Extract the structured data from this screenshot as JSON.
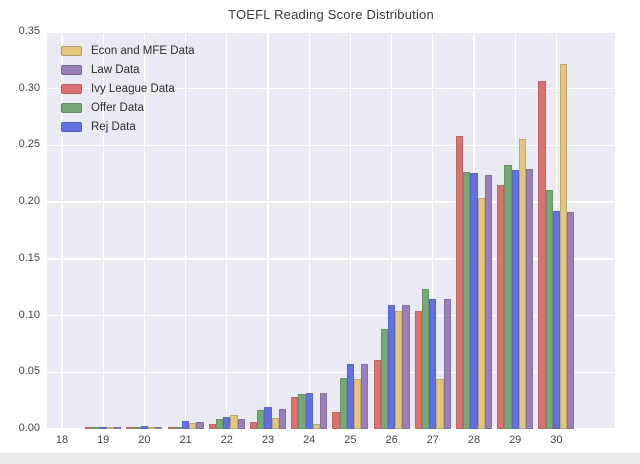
{
  "figure": {
    "title": "TOEFL Reading Score Distribution"
  },
  "chart_data": {
    "type": "bar",
    "title": "TOEFL Reading Score Distribution",
    "xlabel": "",
    "ylabel": "",
    "ylim": [
      0,
      0.35
    ],
    "grid": true,
    "legend_position": "upper left",
    "plot_bg_color": "#eaeaf2",
    "grid_color": "#ffffff",
    "x_ticklabels": [
      "18",
      "19",
      "20",
      "21",
      "22",
      "23",
      "24",
      "25",
      "26",
      "27",
      "28",
      "29",
      "30"
    ],
    "y_ticklabels": [
      "0.00",
      "0.05",
      "0.10",
      "0.15",
      "0.20",
      "0.25",
      "0.30",
      "0.35"
    ],
    "categories": [
      18,
      19,
      20,
      21,
      22,
      23,
      24,
      25,
      26,
      27,
      28,
      29,
      30
    ],
    "bar_order": [
      "ivy",
      "offer",
      "rej",
      "econ",
      "law"
    ],
    "series": [
      {
        "id": "econ",
        "name": "Econ and MFE Data",
        "color": "#e3c77b",
        "values": [
          0,
          0.001,
          0.001,
          0.005,
          0.012,
          0.01,
          0.004,
          0.044,
          0.104,
          0.044,
          0.204,
          0.256,
          0.322
        ]
      },
      {
        "id": "law",
        "name": "Law Data",
        "color": "#9a7fb8",
        "values": [
          0,
          0.002,
          0.002,
          0.006,
          0.009,
          0.018,
          0.032,
          0.057,
          0.109,
          0.115,
          0.224,
          0.229,
          0.191
        ]
      },
      {
        "id": "ivy",
        "name": "Ivy League Data",
        "color": "#dc7171",
        "values": [
          0,
          0.001,
          0.001,
          0.002,
          0.004,
          0.006,
          0.028,
          0.015,
          0.061,
          0.104,
          0.258,
          0.215,
          0.307
        ]
      },
      {
        "id": "offer",
        "name": "Offer Data",
        "color": "#77a877",
        "values": [
          0,
          0.001,
          0.002,
          0.002,
          0.009,
          0.017,
          0.031,
          0.045,
          0.088,
          0.123,
          0.227,
          0.233,
          0.211
        ]
      },
      {
        "id": "rej",
        "name": "Rej Data",
        "color": "#6170e3",
        "values": [
          0,
          0.002,
          0.003,
          0.007,
          0.011,
          0.019,
          0.032,
          0.057,
          0.109,
          0.115,
          0.226,
          0.228,
          0.192
        ]
      }
    ]
  }
}
